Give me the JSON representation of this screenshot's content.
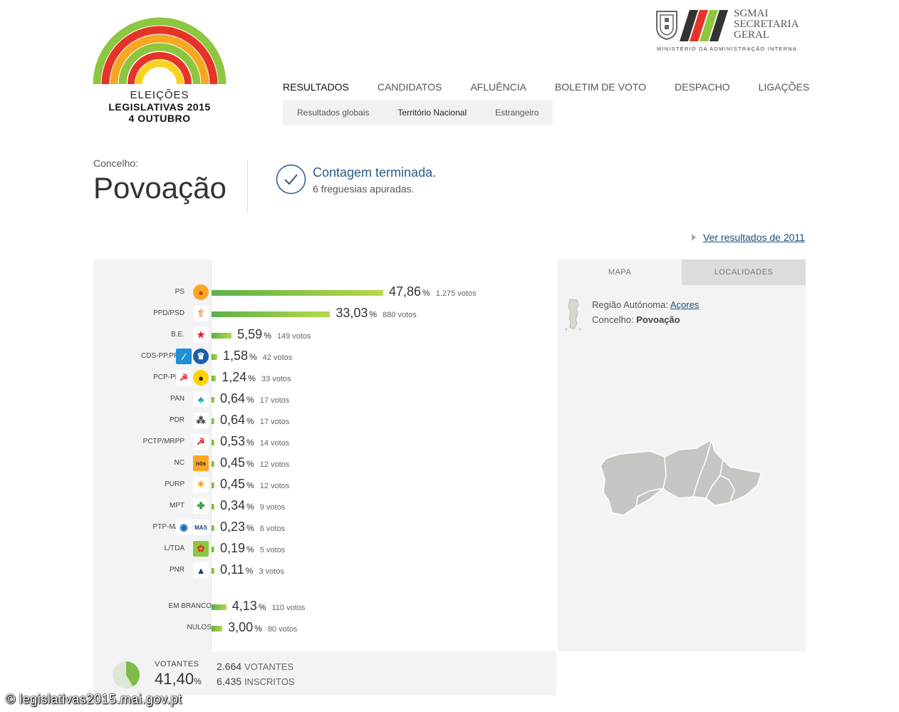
{
  "logo": {
    "line1": "ELEIÇÕES",
    "line2": "LEGISLATIVAS 2015",
    "line3": "4 OUTUBRO",
    "arc_colors": [
      "#8dc63f",
      "#e63329",
      "#f7a823",
      "#8dc63f",
      "#e63329",
      "#f7d31f"
    ]
  },
  "sgmai": {
    "l1": "SGMAI",
    "l2": "SECRETARIA",
    "l3": "GERAL",
    "sub": "MINISTÉRIO DA ADMINISTRAÇÃO INTERNA"
  },
  "nav": {
    "items": [
      "RESULTADOS",
      "CANDIDATOS",
      "AFLUÊNCIA",
      "BOLETIM DE VOTO",
      "DESPACHO",
      "LIGAÇÕES"
    ],
    "active": "RESULTADOS",
    "sub_items": [
      "Resultados globais",
      "Território Nacional",
      "Estrangeiro"
    ],
    "sub_active": "Território Nacional"
  },
  "header": {
    "concelho_label": "Concelho:",
    "concelho_name": "Povoação",
    "status_title": "Contagem terminada.",
    "status_sub": "6 freguesias apuradas.",
    "prev_link": "Ver resultados de 2011"
  },
  "results": [
    {
      "party": "PS",
      "pct": "47,86",
      "votes": "1.275 votos",
      "value": 47.86,
      "icons": [
        "ps"
      ]
    },
    {
      "party": "PPD/PSD",
      "pct": "33,03",
      "votes": "880 votos",
      "value": 33.03,
      "icons": [
        "psd"
      ]
    },
    {
      "party": "B.E.",
      "pct": "5,59",
      "votes": "149 votos",
      "value": 5.59,
      "icons": [
        "be"
      ]
    },
    {
      "party": "CDS-PP.PPM",
      "pct": "1,58",
      "votes": "42 votos",
      "value": 1.58,
      "icons": [
        "cds",
        "ppm"
      ]
    },
    {
      "party": "PCP-PEV",
      "pct": "1,24",
      "votes": "33 votos",
      "value": 1.24,
      "icons": [
        "pcp",
        "pev"
      ]
    },
    {
      "party": "PAN",
      "pct": "0,64",
      "votes": "17 votos",
      "value": 0.64,
      "icons": [
        "pan"
      ]
    },
    {
      "party": "PDR",
      "pct": "0,64",
      "votes": "17 votos",
      "value": 0.64,
      "icons": [
        "pdr"
      ]
    },
    {
      "party": "PCTP/MRPP",
      "pct": "0,53",
      "votes": "14 votos",
      "value": 0.53,
      "icons": [
        "pctp"
      ]
    },
    {
      "party": "NC",
      "pct": "0,45",
      "votes": "12 votos",
      "value": 0.45,
      "icons": [
        "nc"
      ]
    },
    {
      "party": "PURP",
      "pct": "0,45",
      "votes": "12 votos",
      "value": 0.45,
      "icons": [
        "purp"
      ]
    },
    {
      "party": "MPT",
      "pct": "0,34",
      "votes": "9 votos",
      "value": 0.34,
      "icons": [
        "mpt"
      ]
    },
    {
      "party": "PTP-MAS",
      "pct": "0,23",
      "votes": "6 votos",
      "value": 0.23,
      "icons": [
        "ptp",
        "mas"
      ]
    },
    {
      "party": "L/TDA",
      "pct": "0,19",
      "votes": "5 votos",
      "value": 0.19,
      "icons": [
        "ltda"
      ]
    },
    {
      "party": "PNR",
      "pct": "0,11",
      "votes": "3 votos",
      "value": 0.11,
      "icons": [
        "pnr"
      ]
    }
  ],
  "blank_null": [
    {
      "party": "EM BRANCO",
      "pct": "4,13",
      "votes": "110 votos",
      "value": 4.13
    },
    {
      "party": "NULOS",
      "pct": "3,00",
      "votes": "80 votos",
      "value": 3.0
    }
  ],
  "pct_sign": "%",
  "map": {
    "tab_map": "MAPA",
    "tab_places": "LOCALIDADES",
    "region_label": "Região Autónoma:",
    "region_link": "Açores",
    "concelho_label": "Concelho:",
    "concelho_value": "Povoação"
  },
  "turnout": {
    "label": "VOTANTES",
    "pct": "41,40",
    "value": 41.4,
    "votantes_num": "2.664",
    "votantes_cap": "VOTANTES",
    "inscritos_num": "6.435",
    "inscritos_cap": "INSCRITOS"
  },
  "copyright": "© legislativas2015.mai.gov.pt"
}
